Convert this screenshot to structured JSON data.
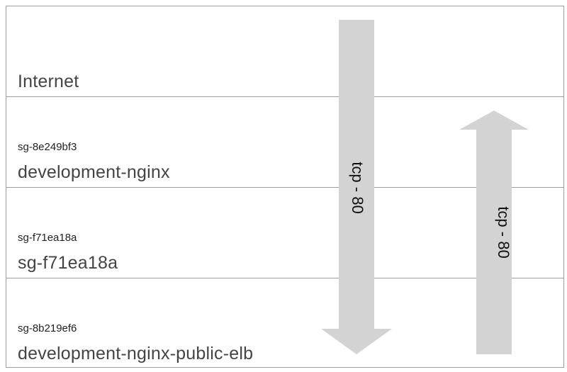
{
  "rows": [
    {
      "id": "",
      "name": "Internet"
    },
    {
      "id": "sg-8e249bf3",
      "name": "development-nginx"
    },
    {
      "id": "sg-f71ea18a",
      "name": "sg-f71ea18a"
    },
    {
      "id": "sg-8b219ef6",
      "name": "development-nginx-public-elb"
    }
  ],
  "arrows": {
    "down_label": "tcp - 80",
    "up_label": "tcp - 80",
    "color": "#d3d3d3"
  }
}
